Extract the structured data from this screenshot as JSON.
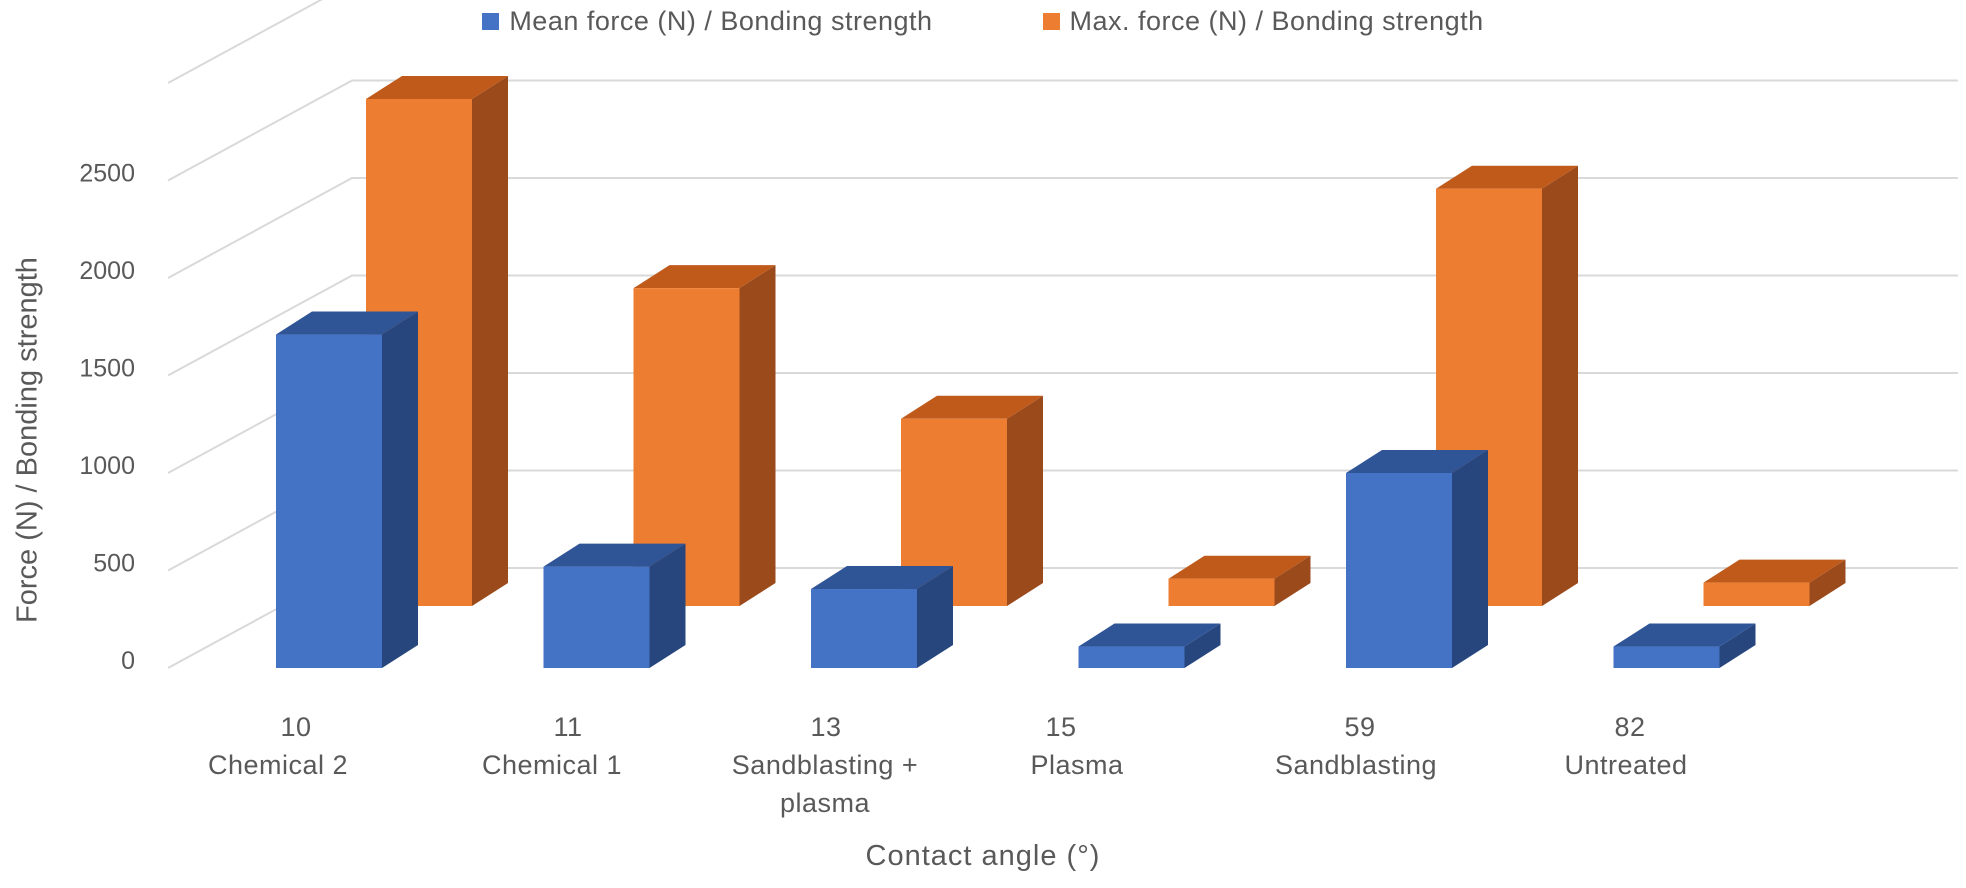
{
  "chart_data": {
    "type": "bar",
    "style": "3d-clustered-column",
    "categories": [
      {
        "angle": "10",
        "treatment": [
          "Chemical 2"
        ]
      },
      {
        "angle": "11",
        "treatment": [
          "Chemical 1"
        ]
      },
      {
        "angle": "13",
        "treatment": [
          "Sandblasting +",
          "plasma"
        ]
      },
      {
        "angle": "15",
        "treatment": [
          "Plasma"
        ]
      },
      {
        "angle": "59",
        "treatment": [
          "Sandblasting"
        ]
      },
      {
        "angle": "82",
        "treatment": [
          "Untreated"
        ]
      }
    ],
    "series": [
      {
        "name": "Mean force (N) / Bonding strength",
        "color": "#4472C4",
        "top_color": "#2F5597",
        "side_color": "#27467D",
        "values": [
          1710,
          520,
          405,
          110,
          1000,
          110
        ]
      },
      {
        "name": "Max. force (N) / Bonding strength",
        "color": "#ED7D31",
        "top_color": "#C05A1B",
        "side_color": "#9B4A1B",
        "values": [
          2600,
          1630,
          960,
          140,
          2140,
          120
        ]
      }
    ],
    "title": "",
    "xlabel": "Contact angle (°)",
    "ylabel": "Force (N) / Bonding strength",
    "yticks": [
      0,
      500,
      1000,
      1500,
      2000,
      2500
    ],
    "ylim": [
      0,
      3000
    ],
    "grid": true,
    "legend_position": "top"
  }
}
